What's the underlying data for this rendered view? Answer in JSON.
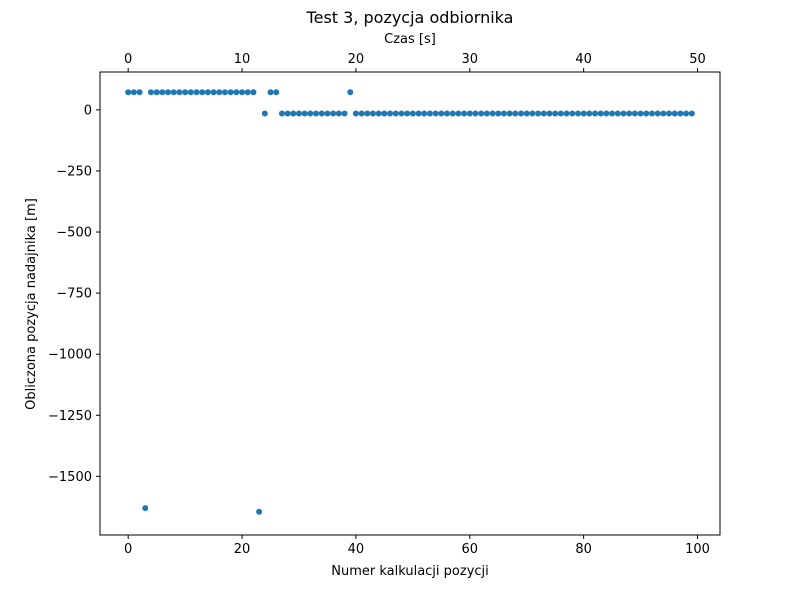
{
  "chart_data": {
    "type": "scatter",
    "title": "Test 3, pozycja odbiornika",
    "xlabel": "Numer kalkulacji pozycji",
    "ylabel": "Obliczona pozycja nadajnika [m]",
    "x2label": "Czas [s]",
    "xlim": [
      -4.95,
      103.95
    ],
    "ylim": [
      -1740,
      155
    ],
    "x2lim": [
      -2.475,
      51.975
    ],
    "xticks": [
      0,
      20,
      40,
      60,
      80,
      100
    ],
    "yticks": [
      0,
      -250,
      -500,
      -750,
      -1000,
      -1250,
      -1500
    ],
    "ytick_labels": [
      "0",
      "−250",
      "−500",
      "−750",
      "−1000",
      "−1250",
      "−1500"
    ],
    "x2ticks": [
      0,
      10,
      20,
      30,
      40,
      50
    ],
    "grid": false,
    "color": "#1f77b4",
    "series": [
      {
        "points": [
          [
            0,
            72
          ],
          [
            1,
            72
          ],
          [
            2,
            72
          ],
          [
            3,
            -1630
          ],
          [
            4,
            72
          ],
          [
            5,
            72
          ],
          [
            6,
            72
          ],
          [
            7,
            72
          ],
          [
            8,
            72
          ],
          [
            9,
            72
          ],
          [
            10,
            72
          ],
          [
            11,
            72
          ],
          [
            12,
            72
          ],
          [
            13,
            72
          ],
          [
            14,
            72
          ],
          [
            15,
            72
          ],
          [
            16,
            72
          ],
          [
            17,
            72
          ],
          [
            18,
            72
          ],
          [
            19,
            72
          ],
          [
            20,
            72
          ],
          [
            21,
            72
          ],
          [
            22,
            72
          ],
          [
            23,
            -1645
          ],
          [
            24,
            -15
          ],
          [
            25,
            72
          ],
          [
            26,
            72
          ],
          [
            27,
            -15
          ],
          [
            28,
            -15
          ],
          [
            29,
            -15
          ],
          [
            30,
            -15
          ],
          [
            31,
            -15
          ],
          [
            32,
            -15
          ],
          [
            33,
            -15
          ],
          [
            34,
            -15
          ],
          [
            35,
            -15
          ],
          [
            36,
            -15
          ],
          [
            37,
            -15
          ],
          [
            38,
            -15
          ],
          [
            39,
            72
          ],
          [
            40,
            -15
          ],
          [
            41,
            -15
          ],
          [
            42,
            -15
          ],
          [
            43,
            -15
          ],
          [
            44,
            -15
          ],
          [
            45,
            -15
          ],
          [
            46,
            -15
          ],
          [
            47,
            -15
          ],
          [
            48,
            -15
          ],
          [
            49,
            -15
          ],
          [
            50,
            -15
          ],
          [
            51,
            -15
          ],
          [
            52,
            -15
          ],
          [
            53,
            -15
          ],
          [
            54,
            -15
          ],
          [
            55,
            -15
          ],
          [
            56,
            -15
          ],
          [
            57,
            -15
          ],
          [
            58,
            -15
          ],
          [
            59,
            -15
          ],
          [
            60,
            -15
          ],
          [
            61,
            -15
          ],
          [
            62,
            -15
          ],
          [
            63,
            -15
          ],
          [
            64,
            -15
          ],
          [
            65,
            -15
          ],
          [
            66,
            -15
          ],
          [
            67,
            -15
          ],
          [
            68,
            -15
          ],
          [
            69,
            -15
          ],
          [
            70,
            -15
          ],
          [
            71,
            -15
          ],
          [
            72,
            -15
          ],
          [
            73,
            -15
          ],
          [
            74,
            -15
          ],
          [
            75,
            -15
          ],
          [
            76,
            -15
          ],
          [
            77,
            -15
          ],
          [
            78,
            -15
          ],
          [
            79,
            -15
          ],
          [
            80,
            -15
          ],
          [
            81,
            -15
          ],
          [
            82,
            -15
          ],
          [
            83,
            -15
          ],
          [
            84,
            -15
          ],
          [
            85,
            -15
          ],
          [
            86,
            -15
          ],
          [
            87,
            -15
          ],
          [
            88,
            -15
          ],
          [
            89,
            -15
          ],
          [
            90,
            -15
          ],
          [
            91,
            -15
          ],
          [
            92,
            -15
          ],
          [
            93,
            -15
          ],
          [
            94,
            -15
          ],
          [
            95,
            -15
          ],
          [
            96,
            -15
          ],
          [
            97,
            -15
          ],
          [
            98,
            -15
          ],
          [
            99,
            -15
          ]
        ]
      }
    ]
  }
}
